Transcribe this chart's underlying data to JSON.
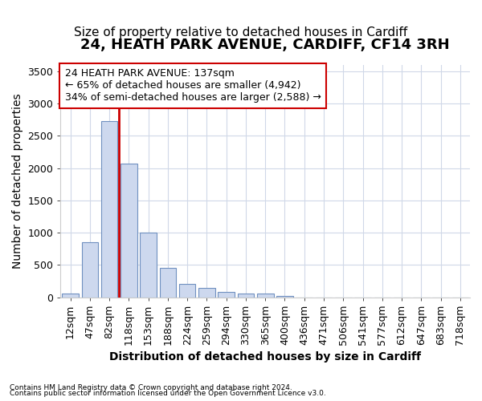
{
  "title_line1": "24, HEATH PARK AVENUE, CARDIFF, CF14 3RH",
  "title_line2": "Size of property relative to detached houses in Cardiff",
  "xlabel": "Distribution of detached houses by size in Cardiff",
  "ylabel": "Number of detached properties",
  "footnote1": "Contains HM Land Registry data © Crown copyright and database right 2024.",
  "footnote2": "Contains public sector information licensed under the Open Government Licence v3.0.",
  "categories": [
    "12sqm",
    "47sqm",
    "82sqm",
    "118sqm",
    "153sqm",
    "188sqm",
    "224sqm",
    "259sqm",
    "294sqm",
    "330sqm",
    "365sqm",
    "400sqm",
    "436sqm",
    "471sqm",
    "506sqm",
    "541sqm",
    "577sqm",
    "612sqm",
    "647sqm",
    "683sqm",
    "718sqm"
  ],
  "values": [
    50,
    850,
    2725,
    2075,
    1000,
    450,
    200,
    140,
    75,
    60,
    50,
    20,
    0,
    0,
    0,
    0,
    0,
    0,
    0,
    0,
    0
  ],
  "bar_color": "#cdd8ee",
  "bar_edge_color": "#7090c0",
  "vline_x": 2.5,
  "vline_color": "#cc0000",
  "annotation_line1": "24 HEATH PARK AVENUE: 137sqm",
  "annotation_line2": "← 65% of detached houses are smaller (4,942)",
  "annotation_line3": "34% of semi-detached houses are larger (2,588) →",
  "annotation_box_facecolor": "#ffffff",
  "annotation_box_edgecolor": "#cc0000",
  "ylim_max": 3600,
  "yticks": [
    0,
    500,
    1000,
    1500,
    2000,
    2500,
    3000,
    3500
  ],
  "background_color": "#ffffff",
  "plot_bg_color": "#ffffff",
  "grid_color": "#d0d8e8",
  "title_fontsize": 13,
  "subtitle_fontsize": 11,
  "axis_label_fontsize": 10,
  "tick_fontsize": 9,
  "annotation_fontsize": 9
}
